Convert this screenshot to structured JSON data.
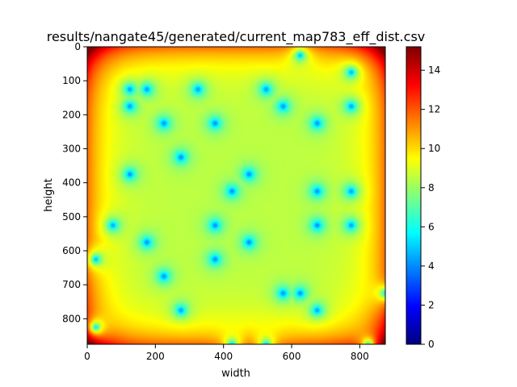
{
  "chart_data": {
    "type": "heatmap",
    "title": "results/nangate45/generated/current_map783_eff_dist.csv",
    "xlabel": "width",
    "ylabel": "height",
    "xlim": [
      0,
      875
    ],
    "ylim": [
      875,
      0
    ],
    "x_ticks": [
      0,
      200,
      400,
      600,
      800
    ],
    "y_ticks": [
      0,
      100,
      200,
      300,
      400,
      500,
      600,
      700,
      800
    ],
    "colorbar": {
      "colormap": "jet",
      "range": [
        0,
        15.2
      ],
      "ticks": [
        0,
        2,
        4,
        6,
        8,
        10,
        12,
        14
      ]
    },
    "background_level": 8.5,
    "sources": [
      [
        625,
        25
      ],
      [
        775,
        75
      ],
      [
        125,
        125
      ],
      [
        175,
        125
      ],
      [
        325,
        125
      ],
      [
        525,
        125
      ],
      [
        125,
        175
      ],
      [
        575,
        175
      ],
      [
        775,
        175
      ],
      [
        225,
        225
      ],
      [
        375,
        225
      ],
      [
        675,
        225
      ],
      [
        275,
        325
      ],
      [
        125,
        375
      ],
      [
        475,
        375
      ],
      [
        425,
        425
      ],
      [
        675,
        425
      ],
      [
        775,
        425
      ],
      [
        75,
        525
      ],
      [
        375,
        525
      ],
      [
        675,
        525
      ],
      [
        775,
        525
      ],
      [
        175,
        575
      ],
      [
        475,
        575
      ],
      [
        25,
        625
      ],
      [
        375,
        625
      ],
      [
        225,
        675
      ],
      [
        575,
        725
      ],
      [
        625,
        725
      ],
      [
        875,
        725
      ],
      [
        275,
        775
      ],
      [
        675,
        775
      ],
      [
        25,
        825
      ],
      [
        425,
        875
      ],
      [
        525,
        875
      ],
      [
        825,
        875
      ]
    ]
  }
}
